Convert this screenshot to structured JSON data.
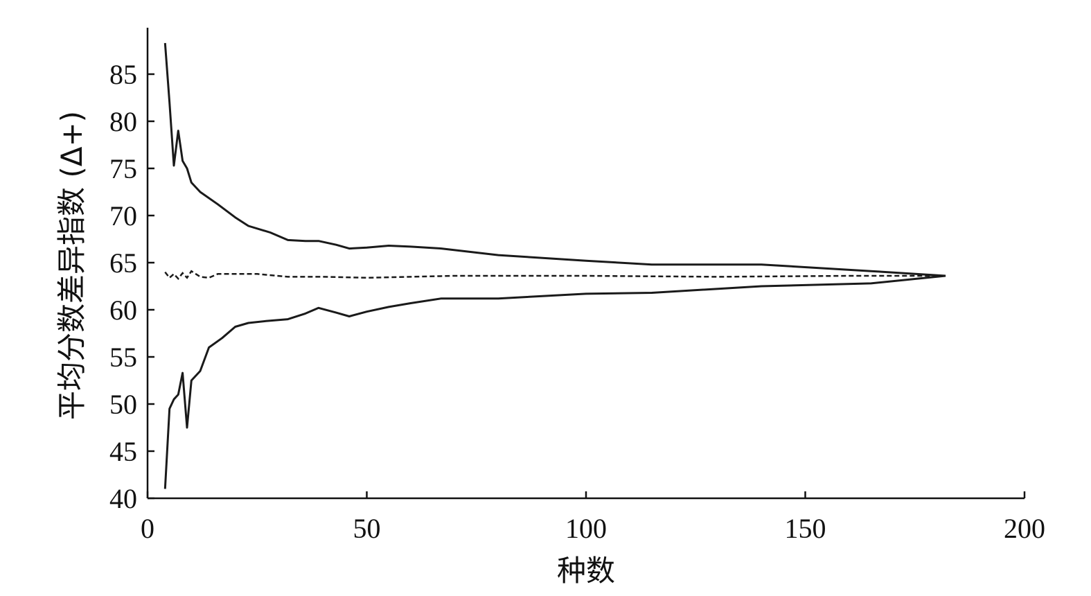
{
  "chart_data": {
    "type": "line",
    "title": "",
    "xlabel": "种数",
    "ylabel": "平均分数差异指数 (Δ+)",
    "xlim": [
      0,
      200
    ],
    "ylim": [
      40,
      90
    ],
    "xticks": [
      0,
      50,
      100,
      150,
      200
    ],
    "yticks": [
      40,
      45,
      50,
      55,
      60,
      65,
      70,
      75,
      80,
      85
    ],
    "grid": false,
    "legend": "none",
    "series": [
      {
        "style": "solid",
        "x": [
          4,
          5,
          6,
          7,
          8,
          9,
          10,
          12,
          16,
          20,
          23,
          28,
          32,
          36,
          39,
          43,
          46,
          50,
          55,
          60,
          67,
          80,
          100,
          115,
          140,
          165,
          182
        ],
        "values": [
          88.3,
          82,
          75.3,
          79,
          75.8,
          75,
          73.5,
          72.5,
          71.2,
          69.8,
          68.9,
          68.2,
          67.4,
          67.3,
          67.3,
          66.9,
          66.5,
          66.6,
          66.8,
          66.7,
          66.5,
          65.8,
          65.2,
          64.8,
          64.8,
          64.1,
          63.6
        ]
      },
      {
        "style": "dashed",
        "x": [
          4,
          5,
          6,
          7,
          8,
          9,
          10,
          12,
          14,
          16,
          20,
          25,
          32,
          40,
          50,
          70,
          100,
          130,
          160,
          182
        ],
        "values": [
          64,
          63.4,
          63.8,
          63.3,
          63.9,
          63.4,
          64.1,
          63.5,
          63.4,
          63.8,
          63.8,
          63.8,
          63.5,
          63.5,
          63.4,
          63.6,
          63.6,
          63.5,
          63.6,
          63.6
        ]
      },
      {
        "style": "solid",
        "x": [
          4,
          5,
          6,
          7,
          8,
          9,
          10,
          12,
          14,
          17,
          20,
          23,
          27,
          32,
          36,
          39,
          43,
          46,
          50,
          55,
          60,
          67,
          80,
          100,
          115,
          140,
          165,
          182
        ],
        "values": [
          41,
          49.5,
          50.5,
          51,
          53.3,
          47.5,
          52.5,
          53.5,
          56,
          57,
          58.2,
          58.6,
          58.8,
          59,
          59.6,
          60.2,
          59.7,
          59.3,
          59.8,
          60.3,
          60.7,
          61.2,
          61.2,
          61.7,
          61.8,
          62.5,
          62.8,
          63.6
        ]
      }
    ]
  }
}
